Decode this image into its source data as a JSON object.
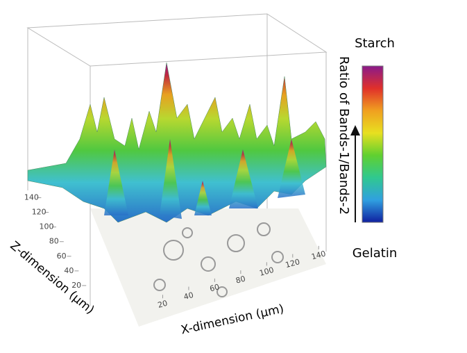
{
  "chart_data": {
    "type": "surface",
    "xlabel": "X-dimension (μm)",
    "zlabel": "Z-dimension (μm)",
    "colorbar_label": "Ratio of Bands-1/Bands-2",
    "colorbar_top": "Starch",
    "colorbar_bottom": "Gelatin",
    "colorbar_colors": [
      "#8a1a8a",
      "#e0302a",
      "#f0a020",
      "#e8e020",
      "#60d030",
      "#30c890",
      "#30a0e0",
      "#1020a0"
    ],
    "xlim": [
      0,
      150
    ],
    "xticks": [
      20,
      40,
      60,
      80,
      100,
      120,
      140
    ],
    "zlim": [
      0,
      150
    ],
    "zticks": [
      20,
      40,
      60,
      80,
      100,
      120,
      140
    ]
  }
}
